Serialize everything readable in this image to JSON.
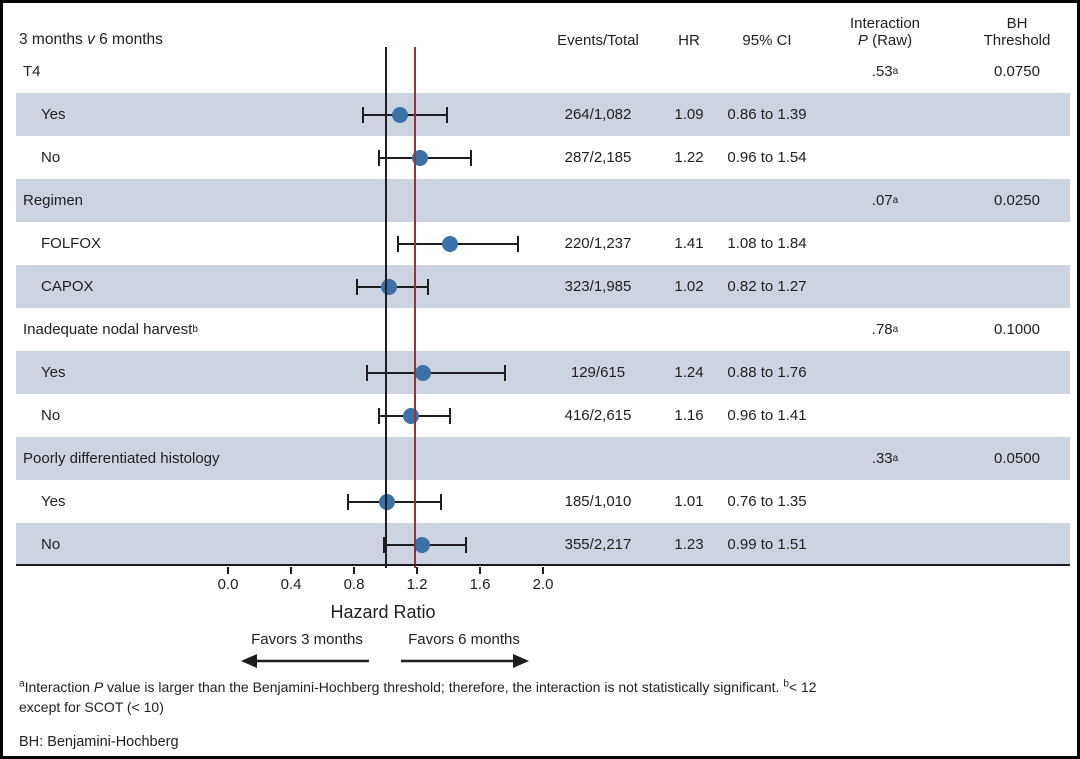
{
  "chart_data": {
    "type": "forest",
    "title": {
      "pre": "3 months ",
      "v": "v",
      "post": " 6 months"
    },
    "headers": {
      "events": "Events/Total",
      "hr": "HR",
      "ci": "95% CI",
      "interaction_line1": "Interaction",
      "interaction_p": "P",
      "interaction_raw": " (Raw)",
      "bh_line1": "BH",
      "bh_line2": "Threshold"
    },
    "rows": [
      {
        "label": "T4",
        "group": true,
        "shaded": false,
        "p_raw": ".53",
        "p_sup": "a",
        "bh_threshold": "0.0750"
      },
      {
        "label": "Yes",
        "group": false,
        "shaded": true,
        "events": "264/1,082",
        "hr": 1.09,
        "hr_text": "1.09",
        "ci_low": 0.86,
        "ci_high": 1.39,
        "ci_text": "0.86 to 1.39"
      },
      {
        "label": "No",
        "group": false,
        "shaded": false,
        "events": "287/2,185",
        "hr": 1.22,
        "hr_text": "1.22",
        "ci_low": 0.96,
        "ci_high": 1.54,
        "ci_text": "0.96 to 1.54"
      },
      {
        "label": "Regimen",
        "group": true,
        "shaded": true,
        "p_raw": ".07",
        "p_sup": "a",
        "bh_threshold": "0.0250"
      },
      {
        "label": "FOLFOX",
        "group": false,
        "shaded": false,
        "events": "220/1,237",
        "hr": 1.41,
        "hr_text": "1.41",
        "ci_low": 1.08,
        "ci_high": 1.84,
        "ci_text": "1.08 to 1.84"
      },
      {
        "label": "CAPOX",
        "group": false,
        "shaded": true,
        "events": "323/1,985",
        "hr": 1.02,
        "hr_text": "1.02",
        "ci_low": 0.82,
        "ci_high": 1.27,
        "ci_text": "0.82 to 1.27"
      },
      {
        "label": "Inadequate nodal harvest",
        "label_sup": "b",
        "group": true,
        "shaded": false,
        "p_raw": ".78",
        "p_sup": "a",
        "bh_threshold": "0.1000"
      },
      {
        "label": "Yes",
        "group": false,
        "shaded": true,
        "events": "129/615",
        "hr": 1.24,
        "hr_text": "1.24",
        "ci_low": 0.88,
        "ci_high": 1.76,
        "ci_text": "0.88 to 1.76"
      },
      {
        "label": "No",
        "group": false,
        "shaded": false,
        "events": "416/2,615",
        "hr": 1.16,
        "hr_text": "1.16",
        "ci_low": 0.96,
        "ci_high": 1.41,
        "ci_text": "0.96 to 1.41"
      },
      {
        "label": "Poorly differentiated histology",
        "group": true,
        "shaded": true,
        "p_raw": ".33",
        "p_sup": "a",
        "bh_threshold": "0.0500"
      },
      {
        "label": "Yes",
        "group": false,
        "shaded": false,
        "events": "185/1,010",
        "hr": 1.01,
        "hr_text": "1.01",
        "ci_low": 0.76,
        "ci_high": 1.35,
        "ci_text": "0.76 to 1.35"
      },
      {
        "label": "No",
        "group": false,
        "shaded": true,
        "events": "355/2,217",
        "hr": 1.23,
        "hr_text": "1.23",
        "ci_low": 0.99,
        "ci_high": 1.51,
        "ci_text": "0.99 to 1.51"
      }
    ],
    "axis": {
      "label": "Hazard Ratio",
      "tick_values": [
        0.0,
        0.4,
        0.8,
        1.2,
        1.6,
        2.0
      ],
      "tick_labels": [
        "0.0",
        "0.4",
        "0.8",
        "1.2",
        "1.6",
        "2.0"
      ],
      "range": [
        0.0,
        2.0
      ],
      "null_line_hr": 1.0,
      "overall_line_hr": 1.19
    },
    "favors": {
      "left": "Favors 3 months",
      "right": "Favors 6 months"
    },
    "colors": {
      "band": "#ccd4e1",
      "marker": "#3a72a7",
      "overall_line": "#96333b",
      "null_line": "#1d1d1d",
      "text": "#212121"
    },
    "notes": {
      "a_sup": "a",
      "a_text1": "Interaction ",
      "a_italic": "P",
      "a_text2": " value is larger than the Benjamini-Hochberg threshold; therefore, the interaction is not statistically significant. ",
      "b_sup": "b",
      "b_text": "< 12 except for SCOT (< 10)",
      "abbrev": "BH: Benjamini-Hochberg"
    }
  }
}
